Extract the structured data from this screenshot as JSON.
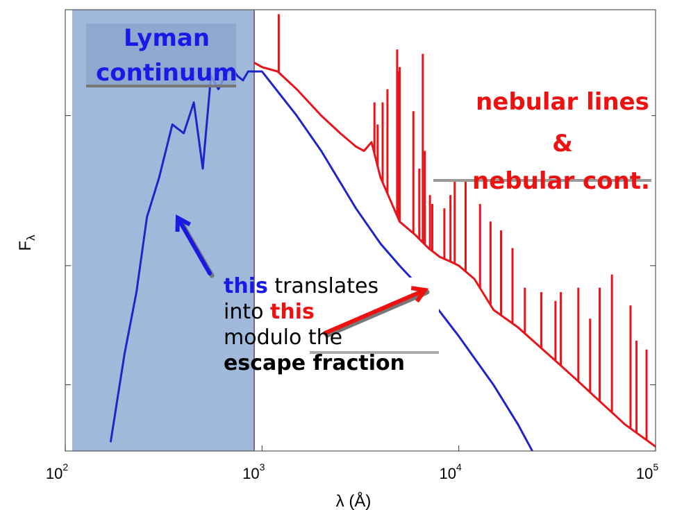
{
  "chart_data": {
    "type": "line",
    "title": "",
    "xlabel": "λ (Å)",
    "ylabel": "F_λ",
    "xscale": "log",
    "xlim": [
      100,
      100000
    ],
    "ylim": [
      0,
      1
    ],
    "grid": false,
    "xticks": [
      {
        "base": "10",
        "exp": "2",
        "value": 100
      },
      {
        "base": "10",
        "exp": "3",
        "value": 1000
      },
      {
        "base": "10",
        "exp": "4",
        "value": 10000
      },
      {
        "base": "10",
        "exp": "5",
        "value": 100000
      }
    ],
    "series": [
      {
        "color": "#1f24c8",
        "x": [
          170,
          200,
          230,
          260,
          300,
          350,
          400,
          450,
          500,
          550,
          600,
          650,
          700,
          750,
          800,
          850,
          912,
          1000,
          1500,
          2000,
          3000,
          4000,
          5000,
          7000,
          10000,
          15000,
          20000,
          25000
        ],
        "y": [
          0.02,
          0.22,
          0.36,
          0.53,
          0.62,
          0.74,
          0.72,
          0.79,
          0.64,
          0.85,
          0.82,
          0.85,
          0.87,
          0.85,
          0.84,
          0.86,
          0.86,
          0.86,
          0.76,
          0.68,
          0.55,
          0.47,
          0.42,
          0.35,
          0.26,
          0.15,
          0.06,
          -0.02
        ]
      },
      {
        "color": "#e8141b",
        "x": [
          912,
          1000,
          1200,
          1500,
          2000,
          2500,
          3000,
          3300,
          3600,
          4000,
          5000,
          6000,
          7000,
          8000,
          9000,
          10000,
          12000,
          15000,
          20000,
          30000,
          40000,
          50000,
          70000,
          100000
        ],
        "y": [
          0.88,
          0.87,
          0.86,
          0.82,
          0.76,
          0.72,
          0.69,
          0.68,
          0.7,
          0.62,
          0.52,
          0.49,
          0.46,
          0.44,
          0.43,
          0.42,
          0.39,
          0.32,
          0.28,
          0.21,
          0.16,
          0.12,
          0.06,
          0.01
        ]
      }
    ],
    "emission_lines": {
      "x": [
        1216,
        3727,
        3869,
        4102,
        4340,
        4861,
        4959,
        5007,
        5876,
        6300,
        6563,
        6717,
        7135,
        7330,
        8446,
        9069,
        9532,
        10830,
        12820,
        14500,
        16400,
        18750,
        21660,
        26250,
        31000,
        33000,
        40510,
        46500,
        52000,
        60000,
        74600,
        80000,
        90000
      ],
      "peak": [
        0.99,
        0.79,
        0.74,
        0.79,
        0.82,
        0.91,
        0.86,
        0.87,
        0.77,
        0.64,
        0.9,
        0.68,
        0.58,
        0.56,
        0.55,
        0.58,
        0.62,
        0.64,
        0.56,
        0.52,
        0.5,
        0.46,
        0.37,
        0.36,
        0.34,
        0.36,
        0.37,
        0.3,
        0.37,
        0.4,
        0.33,
        0.25,
        0.23
      ]
    },
    "shaded_region": {
      "x0": 100,
      "x1": 912,
      "color": "#9bb5d8"
    }
  },
  "annotations": {
    "lyman_line1": "Lyman",
    "lyman_line2": "continuum",
    "nebular_line1": "nebular lines",
    "nebular_line2": "&",
    "nebular_line3": "nebular cont.",
    "word_this_blue": "this",
    "word_translates": " translates",
    "word_into": "into ",
    "word_this_red": "this",
    "word_modulo": "modulo the",
    "word_escape": "escape fraction"
  },
  "colors": {
    "blue": "#1f24c8",
    "red": "#e8141b",
    "annot_blue": "#1a1ae6",
    "annot_red": "#ee1111"
  }
}
